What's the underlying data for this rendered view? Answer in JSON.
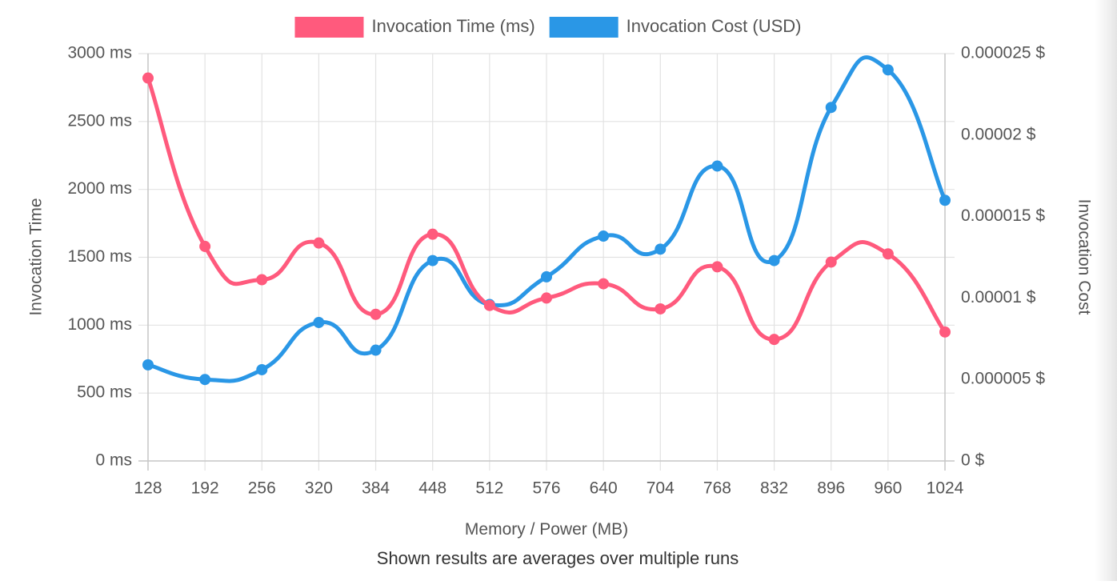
{
  "chart_data": {
    "type": "line",
    "categories": [
      "128",
      "192",
      "256",
      "320",
      "384",
      "448",
      "512",
      "576",
      "640",
      "704",
      "768",
      "832",
      "896",
      "960",
      "1024"
    ],
    "xlabel": "Memory / Power (MB)",
    "footnote": "Shown results are averages over multiple runs",
    "legend_position": "top",
    "grid": true,
    "series": [
      {
        "name": "Invocation Time (ms)",
        "axis": "left",
        "color": "#ff5a7d",
        "values": [
          2820,
          1580,
          1335,
          1605,
          1080,
          1670,
          1145,
          1200,
          1305,
          1120,
          1430,
          895,
          1465,
          1525,
          950
        ]
      },
      {
        "name": "Invocation Cost (USD)",
        "axis": "right",
        "color": "#2a97e6",
        "values": [
          5.9e-06,
          5e-06,
          5.6e-06,
          8.5e-06,
          6.8e-06,
          1.23e-05,
          9.6e-06,
          1.13e-05,
          1.38e-05,
          1.3e-05,
          1.81e-05,
          1.23e-05,
          2.17e-05,
          2.4e-05,
          1.6e-05
        ]
      }
    ],
    "y_left": {
      "label": "Invocation Time",
      "ylim": [
        0,
        3000
      ],
      "ticks": [
        0,
        500,
        1000,
        1500,
        2000,
        2500,
        3000
      ],
      "tick_labels": [
        "0 ms",
        "500 ms",
        "1000 ms",
        "1500 ms",
        "2000 ms",
        "2500 ms",
        "3000 ms"
      ]
    },
    "y_right": {
      "label": "Invocation Cost",
      "ylim": [
        0,
        2.5e-05
      ],
      "ticks": [
        0,
        5e-06,
        1e-05,
        1.5e-05,
        2e-05,
        2.5e-05
      ],
      "tick_labels": [
        "0 $",
        "0.000005 $",
        "0.00001 $",
        "0.000015 $",
        "0.00002 $",
        "0.000025 $"
      ]
    }
  }
}
